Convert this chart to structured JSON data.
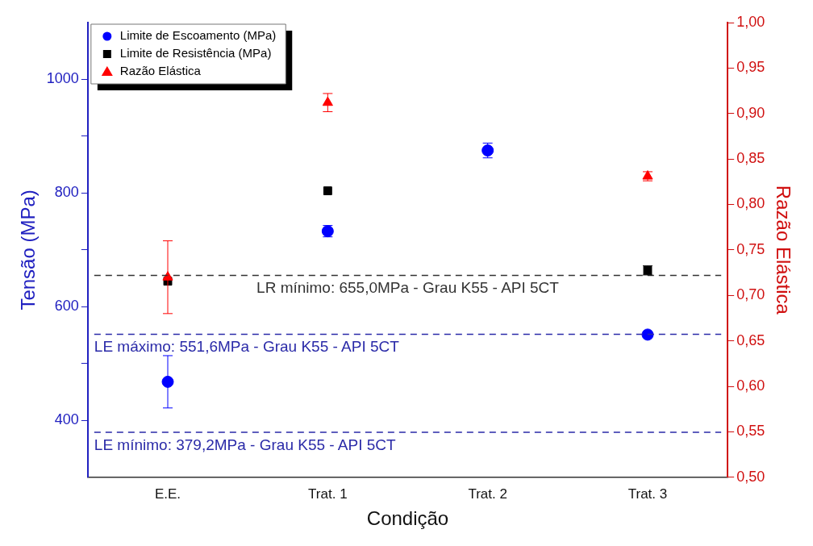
{
  "chart_data": {
    "type": "scatter",
    "xlabel": "Condição",
    "ylabel": "Tensão (MPa)",
    "y2label": "Razão Elástica",
    "categories": [
      "E.E.",
      "Trat. 1",
      "Trat. 2",
      "Trat. 3"
    ],
    "series": [
      {
        "name": "Limite de Escoamento (MPa)",
        "color": "#0000ff",
        "marker": "circle",
        "values": [
          468,
          733,
          875,
          551
        ],
        "errors": [
          46,
          10,
          13,
          null
        ]
      },
      {
        "name": "Limite de Resistência (MPa)",
        "color": "#000000",
        "marker": "square",
        "values": [
          645,
          804,
          null,
          664
        ],
        "errors": [
          null,
          null,
          null,
          8
        ]
      },
      {
        "name": "Razão Elástica",
        "color": "#ff0000",
        "marker": "triangle",
        "axis": "y2",
        "values": [
          0.72,
          0.912,
          null,
          0.831
        ],
        "errors": [
          0.04,
          0.01,
          null,
          0.005
        ]
      }
    ],
    "ylim": [
      300,
      1100
    ],
    "yticks": [
      400,
      {
        "value": 500,
        "label": null
      },
      600,
      {
        "value": 700,
        "label": null
      },
      800,
      {
        "value": 900,
        "label": null
      },
      1000
    ],
    "y2lim": [
      0.5,
      1.0
    ],
    "y2ticks": [
      {
        "value": 0.5,
        "label": "0,50"
      },
      {
        "value": 0.55,
        "label": "0,55"
      },
      {
        "value": 0.6,
        "label": "0,60"
      },
      {
        "value": 0.65,
        "label": "0,65"
      },
      {
        "value": 0.7,
        "label": "0,70"
      },
      {
        "value": 0.75,
        "label": "0,75"
      },
      {
        "value": 0.8,
        "label": "0,80"
      },
      {
        "value": 0.85,
        "label": "0,85"
      },
      {
        "value": 0.9,
        "label": "0,90"
      },
      {
        "value": 0.95,
        "label": "0,95"
      },
      {
        "value": 1.0,
        "label": "1,00"
      }
    ],
    "ref_lines": [
      {
        "axis": "y",
        "value": 655,
        "label": "LR mínimo: 655,0MPa - Grau K55 - API 5CT",
        "color": "#333333",
        "line_style": "dashed"
      },
      {
        "axis": "y",
        "value": 551.6,
        "label": "LE máximo: 551,6MPa - Grau K55 - API 5CT",
        "color": "#2a2aa8",
        "line_style": "dashed"
      },
      {
        "axis": "y",
        "value": 379.2,
        "label": "LE mínimo: 379,2MPa - Grau K55 - API 5CT",
        "color": "#2a2aa8",
        "line_style": "dashed"
      }
    ],
    "legend": "top left",
    "grid": false
  }
}
